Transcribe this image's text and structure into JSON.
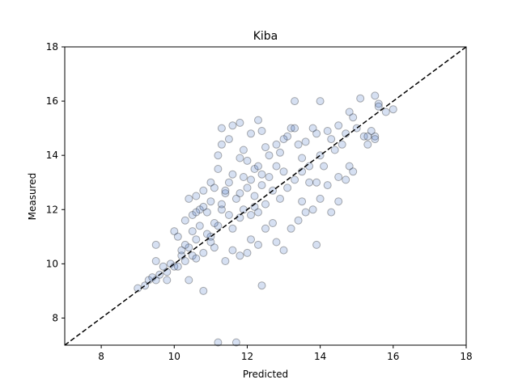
{
  "chart_data": {
    "type": "scatter",
    "title": "Kiba",
    "xlabel": "Predicted",
    "ylabel": "Measured",
    "xlim": [
      7,
      18
    ],
    "ylim": [
      7,
      18
    ],
    "xticks": [
      8,
      10,
      12,
      14,
      16,
      18
    ],
    "yticks": [
      8,
      10,
      12,
      14,
      16,
      18
    ],
    "grid": false,
    "reference_line": {
      "style": "dashed",
      "x": [
        7,
        18
      ],
      "y": [
        7,
        18
      ],
      "color": "#000000"
    },
    "marker": {
      "fill": "#4472c4",
      "fill_opacity": 0.22,
      "edge": "#1a1a1a",
      "edge_opacity": 0.35
    },
    "points": [
      [
        9.0,
        9.1
      ],
      [
        9.2,
        9.2
      ],
      [
        9.3,
        9.4
      ],
      [
        9.4,
        9.5
      ],
      [
        9.5,
        9.4
      ],
      [
        9.6,
        9.6
      ],
      [
        9.7,
        9.9
      ],
      [
        9.8,
        9.7
      ],
      [
        9.9,
        10.0
      ],
      [
        10.0,
        9.9
      ],
      [
        9.5,
        10.1
      ],
      [
        9.5,
        10.7
      ],
      [
        9.8,
        9.4
      ],
      [
        10.1,
        9.9
      ],
      [
        10.2,
        10.3
      ],
      [
        10.3,
        10.1
      ],
      [
        10.4,
        10.6
      ],
      [
        10.5,
        10.3
      ],
      [
        10.4,
        9.4
      ],
      [
        10.6,
        10.9
      ],
      [
        10.0,
        11.2
      ],
      [
        10.1,
        11.0
      ],
      [
        10.3,
        11.6
      ],
      [
        10.5,
        11.8
      ],
      [
        10.4,
        12.4
      ],
      [
        10.7,
        12.0
      ],
      [
        10.6,
        12.5
      ],
      [
        10.8,
        12.7
      ],
      [
        10.5,
        11.2
      ],
      [
        10.7,
        11.4
      ],
      [
        10.9,
        11.9
      ],
      [
        11.0,
        12.3
      ],
      [
        11.0,
        11.0
      ],
      [
        11.1,
        10.6
      ],
      [
        11.2,
        11.4
      ],
      [
        11.3,
        12.0
      ],
      [
        11.4,
        12.6
      ],
      [
        11.5,
        13.0
      ],
      [
        11.2,
        13.5
      ],
      [
        11.0,
        13.0
      ],
      [
        11.2,
        14.0
      ],
      [
        11.3,
        14.4
      ],
      [
        11.5,
        14.6
      ],
      [
        11.6,
        15.1
      ],
      [
        11.3,
        15.0
      ],
      [
        11.8,
        15.2
      ],
      [
        11.9,
        14.2
      ],
      [
        12.0,
        13.8
      ],
      [
        12.2,
        13.5
      ],
      [
        12.1,
        14.8
      ],
      [
        12.4,
        14.9
      ],
      [
        12.5,
        14.3
      ],
      [
        12.3,
        15.3
      ],
      [
        11.8,
        12.6
      ],
      [
        12.0,
        12.8
      ],
      [
        12.2,
        12.1
      ],
      [
        12.4,
        12.9
      ],
      [
        12.6,
        13.2
      ],
      [
        12.8,
        13.6
      ],
      [
        12.7,
        12.7
      ],
      [
        12.9,
        14.1
      ],
      [
        13.0,
        13.4
      ],
      [
        13.1,
        14.7
      ],
      [
        13.2,
        15.0
      ],
      [
        13.3,
        16.0
      ],
      [
        13.4,
        14.4
      ],
      [
        13.5,
        13.9
      ],
      [
        13.6,
        14.5
      ],
      [
        13.8,
        15.0
      ],
      [
        13.9,
        14.8
      ],
      [
        13.7,
        13.6
      ],
      [
        13.9,
        13.0
      ],
      [
        14.0,
        14.0
      ],
      [
        14.1,
        13.6
      ],
      [
        14.2,
        14.9
      ],
      [
        14.0,
        16.0
      ],
      [
        14.3,
        14.6
      ],
      [
        14.4,
        14.2
      ],
      [
        14.5,
        15.1
      ],
      [
        14.6,
        14.4
      ],
      [
        14.7,
        14.8
      ],
      [
        14.8,
        15.6
      ],
      [
        14.9,
        15.4
      ],
      [
        15.0,
        15.0
      ],
      [
        15.1,
        16.1
      ],
      [
        15.2,
        14.7
      ],
      [
        15.3,
        14.4
      ],
      [
        15.5,
        14.7
      ],
      [
        15.5,
        16.2
      ],
      [
        15.6,
        15.9
      ],
      [
        15.5,
        14.6
      ],
      [
        15.4,
        14.9
      ],
      [
        15.8,
        15.6
      ],
      [
        14.8,
        13.6
      ],
      [
        14.7,
        13.1
      ],
      [
        14.5,
        13.2
      ],
      [
        14.2,
        12.9
      ],
      [
        14.0,
        12.4
      ],
      [
        13.8,
        12.0
      ],
      [
        13.5,
        12.3
      ],
      [
        13.6,
        11.9
      ],
      [
        13.4,
        11.6
      ],
      [
        13.2,
        11.3
      ],
      [
        13.0,
        10.5
      ],
      [
        12.8,
        10.8
      ],
      [
        12.5,
        11.3
      ],
      [
        12.3,
        10.7
      ],
      [
        12.1,
        10.9
      ],
      [
        12.0,
        10.4
      ],
      [
        11.8,
        10.3
      ],
      [
        11.6,
        10.5
      ],
      [
        11.4,
        10.1
      ],
      [
        11.6,
        11.3
      ],
      [
        11.8,
        11.7
      ],
      [
        12.1,
        11.8
      ],
      [
        12.3,
        11.9
      ],
      [
        12.5,
        12.2
      ],
      [
        12.7,
        11.5
      ],
      [
        12.9,
        12.4
      ],
      [
        13.1,
        12.8
      ],
      [
        13.3,
        13.1
      ],
      [
        13.5,
        13.4
      ],
      [
        13.7,
        13.0
      ],
      [
        11.1,
        12.8
      ],
      [
        11.3,
        12.2
      ],
      [
        11.5,
        11.8
      ],
      [
        11.7,
        12.4
      ],
      [
        11.9,
        13.2
      ],
      [
        12.1,
        13.1
      ],
      [
        12.3,
        13.6
      ],
      [
        12.6,
        14.0
      ],
      [
        12.8,
        14.4
      ],
      [
        13.0,
        14.6
      ],
      [
        13.3,
        15.0
      ],
      [
        10.8,
        9.0
      ],
      [
        12.4,
        9.2
      ],
      [
        11.2,
        7.1
      ],
      [
        11.7,
        7.1
      ],
      [
        13.9,
        10.7
      ],
      [
        14.5,
        12.3
      ],
      [
        15.6,
        15.8
      ],
      [
        16.0,
        15.7
      ],
      [
        14.3,
        11.9
      ],
      [
        14.9,
        13.4
      ],
      [
        15.3,
        14.7
      ],
      [
        10.2,
        10.5
      ],
      [
        10.3,
        10.7
      ],
      [
        10.6,
        10.2
      ],
      [
        10.8,
        10.4
      ],
      [
        11.0,
        10.8
      ],
      [
        11.1,
        11.5
      ],
      [
        10.9,
        11.1
      ],
      [
        10.6,
        11.9
      ],
      [
        10.8,
        12.1
      ],
      [
        11.4,
        12.7
      ],
      [
        11.6,
        13.3
      ],
      [
        11.8,
        13.9
      ],
      [
        11.9,
        12.0
      ],
      [
        12.2,
        12.5
      ],
      [
        12.4,
        13.3
      ]
    ]
  }
}
